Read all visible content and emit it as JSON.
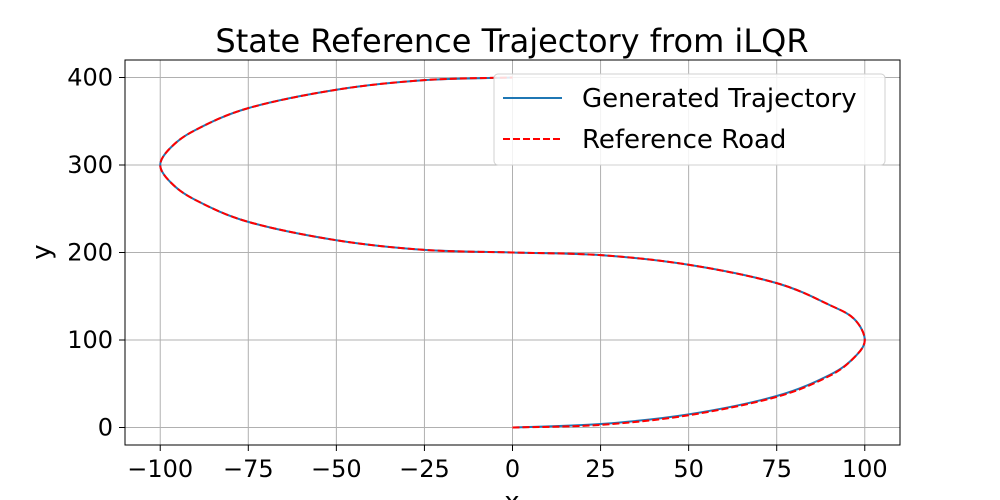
{
  "chart_data": {
    "type": "line",
    "title": "State Reference Trajectory from iLQR",
    "xlabel": "x",
    "ylabel": "y",
    "xlim": [
      -110,
      110
    ],
    "ylim": [
      -20,
      420
    ],
    "xticks": [
      -100,
      -75,
      -50,
      -25,
      0,
      25,
      50,
      75,
      100
    ],
    "yticks": [
      0,
      100,
      200,
      300,
      400
    ],
    "xtick_labels": [
      "−100",
      "−75",
      "−50",
      "−25",
      "0",
      "25",
      "50",
      "75",
      "100"
    ],
    "ytick_labels": [
      "0",
      "100",
      "200",
      "300",
      "400"
    ],
    "grid": true,
    "legend_position": "top-right",
    "series": [
      {
        "name": "Generated Trajectory",
        "color": "#1f77b4",
        "style": "solid",
        "x": [
          0,
          25,
          50,
          75,
          90,
          97,
          100,
          97,
          90,
          75,
          50,
          25,
          0,
          -25,
          -50,
          -75,
          -90,
          -97,
          -100,
          -97,
          -90,
          -75,
          -50,
          -25,
          0
        ],
        "y": [
          0,
          4,
          15,
          36,
          60,
          80,
          100,
          124,
          140,
          165,
          186,
          197,
          200,
          203,
          214,
          235,
          260,
          280,
          300,
          320,
          340,
          365,
          386,
          397,
          400
        ]
      },
      {
        "name": "Reference Road",
        "color": "#ff0000",
        "style": "dashed",
        "x": [
          0,
          25,
          50,
          75,
          90,
          97,
          100,
          97,
          90,
          75,
          50,
          25,
          0,
          -25,
          -50,
          -75,
          -90,
          -97,
          -100,
          -97,
          -90,
          -75,
          -50,
          -25,
          0
        ],
        "y": [
          0,
          3,
          14,
          35,
          59,
          80,
          100,
          124,
          140,
          165,
          186,
          197,
          200,
          203,
          214,
          235,
          260,
          280,
          300,
          320,
          340,
          365,
          386,
          397,
          400
        ]
      }
    ]
  }
}
